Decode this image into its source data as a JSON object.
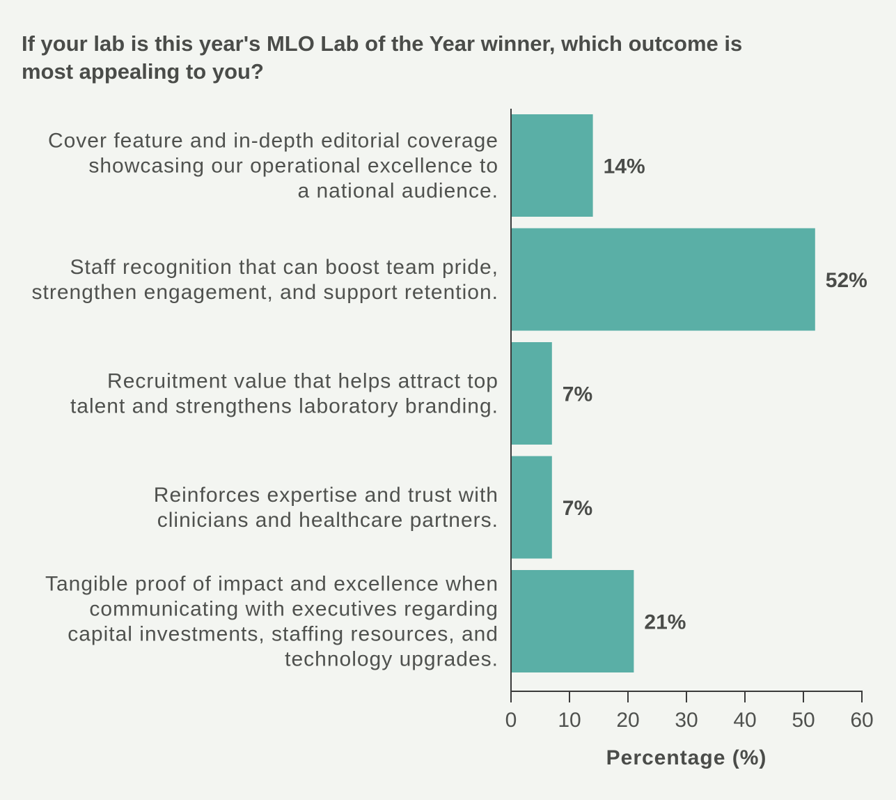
{
  "chart_data": {
    "type": "bar",
    "orientation": "horizontal",
    "title_lines": [
      "If your lab is this year's MLO Lab of the Year winner, which outcome is",
      "most appealing to you?"
    ],
    "categories": [
      [
        "Cover feature and in-depth editorial coverage",
        "showcasing our operational excellence to",
        "a national audience."
      ],
      [
        "Staff recognition that can boost team pride,",
        "strengthen engagement, and support retention."
      ],
      [
        "Recruitment value that helps attract top",
        "talent and strengthens laboratory branding."
      ],
      [
        "Reinforces expertise and trust with",
        "clinicians and healthcare partners."
      ],
      [
        "Tangible proof of impact and excellence when",
        "communicating with executives regarding",
        "capital investments, staffing resources, and",
        "technology upgrades."
      ]
    ],
    "values": [
      14,
      52,
      7,
      7,
      21
    ],
    "value_labels": [
      "14%",
      "52%",
      "7%",
      "7%",
      "21%"
    ],
    "xlabel": "Percentage (%)",
    "xlim": [
      0,
      60
    ],
    "xticks": [
      0,
      10,
      20,
      30,
      40,
      50,
      60
    ],
    "bar_color": "#5aafa6",
    "grid": false
  }
}
